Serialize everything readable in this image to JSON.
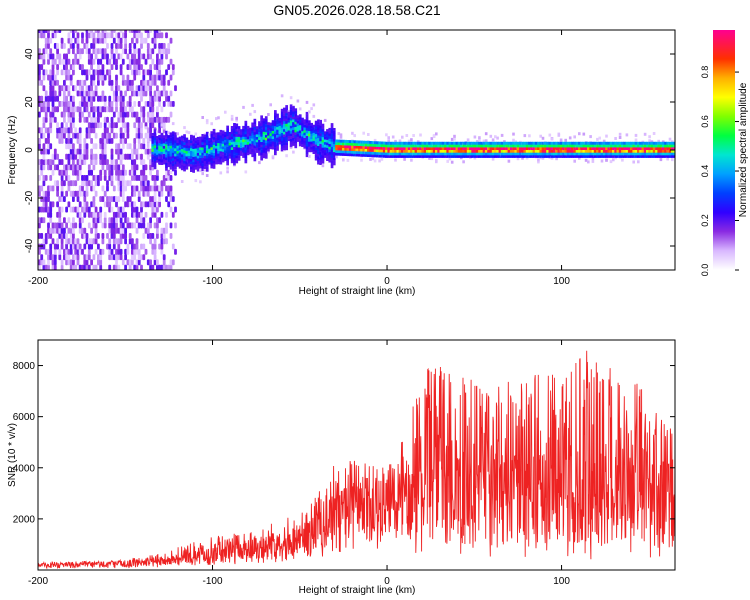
{
  "title": "GN05.2026.028.18.58.C21",
  "chart_data": [
    {
      "type": "heatmap",
      "title": "GN05.2026.028.18.58.C21",
      "xlabel": "Height of straight line (km)",
      "ylabel": "Frequency (Hz)",
      "xlim": [
        -200,
        165
      ],
      "ylim": [
        -50,
        50
      ],
      "xticks": [
        -200,
        -100,
        0,
        100
      ],
      "yticks": [
        -40,
        -20,
        0,
        20,
        40
      ],
      "colorbar": {
        "label": "Normalized spectral amplitude",
        "range": [
          0,
          0.97
        ],
        "ticks": [
          0.0,
          0.2,
          0.4,
          0.6,
          0.8
        ]
      },
      "description_points": {
        "noise_region_x": [
          -200,
          -130
        ],
        "signal_center_freq": [
          [
            -130,
            0
          ],
          [
            -110,
            -2
          ],
          [
            -90,
            2
          ],
          [
            -70,
            5
          ],
          [
            -55,
            10
          ],
          [
            -40,
            3
          ],
          [
            -30,
            1
          ],
          [
            0,
            0
          ],
          [
            50,
            0
          ],
          [
            100,
            0
          ],
          [
            165,
            0
          ]
        ],
        "peak_amplitude_band_x": [
          -30,
          165
        ]
      }
    },
    {
      "type": "line",
      "xlabel": "Height of straight line (km)",
      "ylabel": "SNR (10 * v/v)",
      "xlim": [
        -200,
        165
      ],
      "ylim": [
        0,
        9000
      ],
      "xticks": [
        -200,
        -100,
        0,
        100
      ],
      "yticks": [
        2000,
        4000,
        6000,
        8000
      ],
      "series": [
        {
          "name": "SNR",
          "color": "#ee2222",
          "envelope": {
            "x": [
              -200,
              -150,
              -130,
              -100,
              -70,
              -50,
              -40,
              -30,
              -20,
              0,
              20,
              40,
              60,
              80,
              100,
              120,
              140,
              165
            ],
            "baseline": [
              200,
              250,
              350,
              600,
              900,
              1200,
              1500,
              2000,
              2400,
              2600,
              3200,
              3400,
              3500,
              3500,
              3500,
              3500,
              3500,
              3500
            ],
            "max": [
              300,
              400,
              700,
              1300,
              1700,
              2300,
              3000,
              4300,
              4400,
              4000,
              8300,
              7700,
              7300,
              7600,
              8000,
              8900,
              7700,
              5300
            ]
          }
        }
      ]
    }
  ]
}
